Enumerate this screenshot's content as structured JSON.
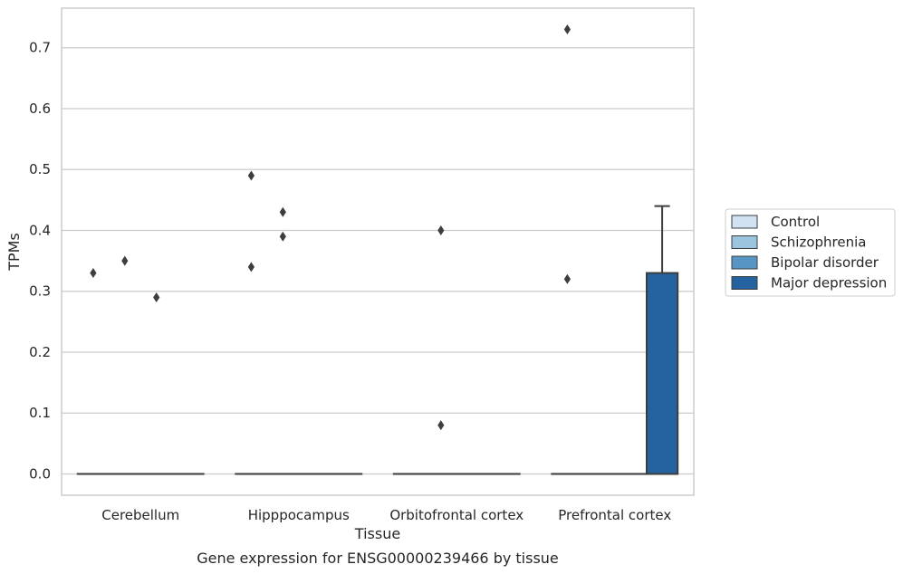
{
  "chart_data": {
    "type": "box",
    "title": "Gene expression for ENSG00000239466 by tissue",
    "xlabel": "Tissue",
    "ylabel": "TPMs",
    "ylim": [
      -0.035,
      0.765
    ],
    "yticks": [
      0.0,
      0.1,
      0.2,
      0.3,
      0.4,
      0.5,
      0.6,
      0.7
    ],
    "ytick_labels": [
      "0.0",
      "0.1",
      "0.2",
      "0.3",
      "0.4",
      "0.5",
      "0.6",
      "0.7"
    ],
    "grid": "horizontal",
    "legend_position": "right",
    "categories": [
      "Cerebellum",
      "Hipppocampus",
      "Orbitofrontal cortex",
      "Prefrontal cortex"
    ],
    "series": [
      {
        "name": "Control",
        "color": "#d1e2f2",
        "boxes": [
          {
            "category": "Cerebellum",
            "q1": 0.0,
            "median": 0.0,
            "q3": 0.0,
            "whisker_low": 0.0,
            "whisker_high": 0.0,
            "outliers": [
              0.33
            ]
          },
          {
            "category": "Hipppocampus",
            "q1": 0.0,
            "median": 0.0,
            "q3": 0.0,
            "whisker_low": 0.0,
            "whisker_high": 0.0,
            "outliers": [
              0.49,
              0.34
            ]
          },
          {
            "category": "Orbitofrontal cortex",
            "q1": 0.0,
            "median": 0.0,
            "q3": 0.0,
            "whisker_low": 0.0,
            "whisker_high": 0.0,
            "outliers": []
          },
          {
            "category": "Prefrontal cortex",
            "q1": 0.0,
            "median": 0.0,
            "q3": 0.0,
            "whisker_low": 0.0,
            "whisker_high": 0.0,
            "outliers": [
              0.73,
              0.32
            ]
          }
        ]
      },
      {
        "name": "Schizophrenia",
        "color": "#9bc4de",
        "boxes": [
          {
            "category": "Cerebellum",
            "q1": 0.0,
            "median": 0.0,
            "q3": 0.0,
            "whisker_low": 0.0,
            "whisker_high": 0.0,
            "outliers": [
              0.35
            ]
          },
          {
            "category": "Hipppocampus",
            "q1": 0.0,
            "median": 0.0,
            "q3": 0.0,
            "whisker_low": 0.0,
            "whisker_high": 0.0,
            "outliers": [
              0.43,
              0.39
            ]
          },
          {
            "category": "Orbitofrontal cortex",
            "q1": 0.0,
            "median": 0.0,
            "q3": 0.0,
            "whisker_low": 0.0,
            "whisker_high": 0.0,
            "outliers": [
              0.08,
              0.4
            ]
          },
          {
            "category": "Prefrontal cortex",
            "q1": 0.0,
            "median": 0.0,
            "q3": 0.0,
            "whisker_low": 0.0,
            "whisker_high": 0.0,
            "outliers": []
          }
        ]
      },
      {
        "name": "Bipolar disorder",
        "color": "#5796c4",
        "boxes": [
          {
            "category": "Cerebellum",
            "q1": 0.0,
            "median": 0.0,
            "q3": 0.0,
            "whisker_low": 0.0,
            "whisker_high": 0.0,
            "outliers": [
              0.29
            ]
          },
          {
            "category": "Hipppocampus",
            "q1": 0.0,
            "median": 0.0,
            "q3": 0.0,
            "whisker_low": 0.0,
            "whisker_high": 0.0,
            "outliers": []
          },
          {
            "category": "Orbitofrontal cortex",
            "q1": 0.0,
            "median": 0.0,
            "q3": 0.0,
            "whisker_low": 0.0,
            "whisker_high": 0.0,
            "outliers": []
          },
          {
            "category": "Prefrontal cortex",
            "q1": 0.0,
            "median": 0.0,
            "q3": 0.0,
            "whisker_low": 0.0,
            "whisker_high": 0.0,
            "outliers": []
          }
        ]
      },
      {
        "name": "Major depression",
        "color": "#2463a0",
        "boxes": [
          {
            "category": "Cerebellum",
            "q1": 0.0,
            "median": 0.0,
            "q3": 0.0,
            "whisker_low": 0.0,
            "whisker_high": 0.0,
            "outliers": []
          },
          {
            "category": "Hipppocampus",
            "q1": 0.0,
            "median": 0.0,
            "q3": 0.0,
            "whisker_low": 0.0,
            "whisker_high": 0.0,
            "outliers": []
          },
          {
            "category": "Orbitofrontal cortex",
            "q1": 0.0,
            "median": 0.0,
            "q3": 0.0,
            "whisker_low": 0.0,
            "whisker_high": 0.0,
            "outliers": []
          },
          {
            "category": "Prefrontal cortex",
            "q1": 0.0,
            "median": 0.0,
            "q3": 0.33,
            "whisker_low": 0.0,
            "whisker_high": 0.44,
            "outliers": []
          }
        ]
      }
    ]
  }
}
